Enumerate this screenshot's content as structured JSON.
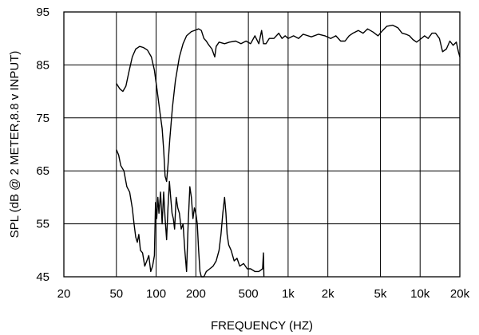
{
  "chart_data": {
    "type": "line",
    "title": "",
    "xlabel": "FREQUENCY  (HZ)",
    "ylabel": "SPL (dB @ 2 METER,8.8 v  INPUT)",
    "x_scale": "log",
    "xlim": [
      20,
      20000
    ],
    "ylim": [
      45,
      95
    ],
    "grid": true,
    "x_ticks": [
      {
        "value": 20,
        "label": "20"
      },
      {
        "value": 50,
        "label": "50"
      },
      {
        "value": 100,
        "label": "100"
      },
      {
        "value": 200,
        "label": "200"
      },
      {
        "value": 500,
        "label": "500"
      },
      {
        "value": 1000,
        "label": "1k"
      },
      {
        "value": 2000,
        "label": "2k"
      },
      {
        "value": 5000,
        "label": "5k"
      },
      {
        "value": 10000,
        "label": "10k"
      },
      {
        "value": 20000,
        "label": "20k"
      }
    ],
    "y_ticks": [
      {
        "value": 45,
        "label": "45"
      },
      {
        "value": 55,
        "label": "55"
      },
      {
        "value": 65,
        "label": "65"
      },
      {
        "value": 75,
        "label": "75"
      },
      {
        "value": 85,
        "label": "85"
      },
      {
        "value": 95,
        "label": "95"
      }
    ],
    "series": [
      {
        "points": [
          [
            50,
            81.5
          ],
          [
            53,
            80.5
          ],
          [
            56,
            80
          ],
          [
            59,
            81
          ],
          [
            62,
            83.5
          ],
          [
            66,
            86.5
          ],
          [
            70,
            88
          ],
          [
            75,
            88.5
          ],
          [
            80,
            88.3
          ],
          [
            86,
            87.8
          ],
          [
            92,
            86.5
          ],
          [
            97,
            84
          ],
          [
            102,
            80
          ],
          [
            107,
            76
          ],
          [
            111,
            73
          ],
          [
            114,
            69
          ],
          [
            117,
            64
          ],
          [
            120,
            63
          ],
          [
            123,
            66
          ],
          [
            127,
            71
          ],
          [
            133,
            77
          ],
          [
            140,
            82
          ],
          [
            150,
            86.5
          ],
          [
            160,
            89
          ],
          [
            170,
            90.5
          ],
          [
            185,
            91.3
          ],
          [
            200,
            91.6
          ],
          [
            210,
            91.8
          ],
          [
            220,
            91.5
          ],
          [
            230,
            90
          ],
          [
            240,
            89.5
          ],
          [
            250,
            88.8
          ],
          [
            265,
            88
          ],
          [
            278,
            86.5
          ],
          [
            285,
            88.5
          ],
          [
            300,
            89.3
          ],
          [
            330,
            89
          ],
          [
            360,
            89.3
          ],
          [
            400,
            89.5
          ],
          [
            440,
            89
          ],
          [
            480,
            89.5
          ],
          [
            520,
            89
          ],
          [
            560,
            90.5
          ],
          [
            600,
            89
          ],
          [
            630,
            91.5
          ],
          [
            650,
            89
          ],
          [
            680,
            89
          ],
          [
            720,
            90
          ],
          [
            780,
            90
          ],
          [
            850,
            91
          ],
          [
            900,
            90
          ],
          [
            950,
            90.5
          ],
          [
            1000,
            90
          ],
          [
            1100,
            90.5
          ],
          [
            1200,
            90
          ],
          [
            1300,
            90.8
          ],
          [
            1500,
            90.3
          ],
          [
            1700,
            90.8
          ],
          [
            1900,
            90.5
          ],
          [
            2100,
            90
          ],
          [
            2300,
            90.5
          ],
          [
            2500,
            89.5
          ],
          [
            2700,
            89.5
          ],
          [
            2900,
            90.5
          ],
          [
            3100,
            91
          ],
          [
            3400,
            91.5
          ],
          [
            3700,
            91
          ],
          [
            4000,
            91.8
          ],
          [
            4400,
            91.2
          ],
          [
            4800,
            90.5
          ],
          [
            5200,
            91.5
          ],
          [
            5600,
            92.3
          ],
          [
            6200,
            92.5
          ],
          [
            6800,
            92
          ],
          [
            7300,
            91
          ],
          [
            7800,
            90.8
          ],
          [
            8300,
            90.5
          ],
          [
            8800,
            89.8
          ],
          [
            9400,
            89.3
          ],
          [
            10000,
            89.8
          ],
          [
            10800,
            90.5
          ],
          [
            11500,
            90
          ],
          [
            12300,
            91
          ],
          [
            13100,
            91
          ],
          [
            14000,
            90
          ],
          [
            14800,
            87.5
          ],
          [
            15800,
            88
          ],
          [
            16800,
            89.5
          ],
          [
            17800,
            88.7
          ],
          [
            18800,
            89.3
          ],
          [
            19500,
            87.5
          ],
          [
            20000,
            86.5
          ]
        ]
      },
      {
        "points": [
          [
            50,
            69
          ],
          [
            52,
            68
          ],
          [
            54,
            66
          ],
          [
            57,
            65
          ],
          [
            60,
            62
          ],
          [
            63,
            61
          ],
          [
            66,
            58
          ],
          [
            68,
            55
          ],
          [
            70,
            52.5
          ],
          [
            72,
            51.5
          ],
          [
            74,
            53
          ],
          [
            76,
            50
          ],
          [
            79,
            49.5
          ],
          [
            82,
            47
          ],
          [
            85,
            48
          ],
          [
            88,
            49
          ],
          [
            91,
            46
          ],
          [
            94,
            47
          ],
          [
            97,
            49
          ],
          [
            99,
            59
          ],
          [
            101,
            56
          ],
          [
            103,
            60
          ],
          [
            105,
            57
          ],
          [
            108,
            61
          ],
          [
            111,
            55
          ],
          [
            114,
            61
          ],
          [
            117,
            56
          ],
          [
            120,
            52
          ],
          [
            123,
            58
          ],
          [
            126,
            63
          ],
          [
            129,
            60
          ],
          [
            132,
            57
          ],
          [
            135,
            56
          ],
          [
            138,
            54
          ],
          [
            142,
            60
          ],
          [
            146,
            58
          ],
          [
            150,
            57
          ],
          [
            155,
            54
          ],
          [
            160,
            55
          ],
          [
            165,
            50
          ],
          [
            170,
            46
          ],
          [
            175,
            55
          ],
          [
            180,
            62
          ],
          [
            185,
            60
          ],
          [
            190,
            56
          ],
          [
            195,
            58
          ],
          [
            200,
            57
          ],
          [
            205,
            55
          ],
          [
            210,
            50
          ],
          [
            215,
            46
          ],
          [
            220,
            45
          ],
          [
            230,
            45
          ],
          [
            240,
            46
          ],
          [
            255,
            46.5
          ],
          [
            270,
            47
          ],
          [
            285,
            48
          ],
          [
            300,
            50
          ],
          [
            310,
            53
          ],
          [
            320,
            57
          ],
          [
            330,
            60
          ],
          [
            338,
            57
          ],
          [
            345,
            53
          ],
          [
            355,
            51
          ],
          [
            370,
            50
          ],
          [
            390,
            48
          ],
          [
            410,
            48.5
          ],
          [
            430,
            47
          ],
          [
            460,
            47.5
          ],
          [
            490,
            46.5
          ],
          [
            520,
            46.5
          ],
          [
            560,
            46
          ],
          [
            600,
            46
          ],
          [
            640,
            46.5
          ],
          [
            650,
            49.5
          ],
          [
            656,
            45
          ]
        ]
      }
    ]
  }
}
